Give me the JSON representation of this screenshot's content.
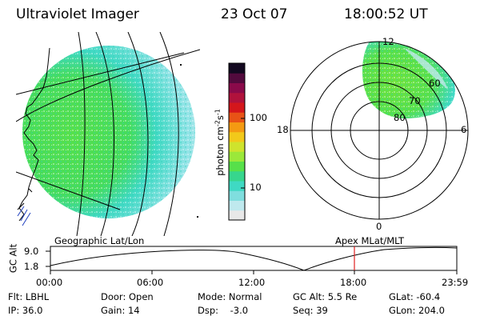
{
  "header": {
    "instrument": "Ultraviolet Imager",
    "date": "23 Oct 07",
    "time": "18:00:52 UT"
  },
  "colorbar": {
    "unit": "photon cm",
    "unit_exp1": "-2",
    "unit_mid": "s",
    "unit_exp2": "-1",
    "tick_100": "100",
    "tick_10": "10",
    "colors": [
      "#e8e8e8",
      "#bfe9ee",
      "#7fdede",
      "#3fd9c3",
      "#37d68d",
      "#57e04a",
      "#9be83a",
      "#cfe32d",
      "#f2c91a",
      "#f49a12",
      "#e85316",
      "#d4161b",
      "#b0123c",
      "#8a0a4a",
      "#520a3d",
      "#120820"
    ]
  },
  "left_panel": {
    "label": "Geographic Lat/Lon"
  },
  "right_panel": {
    "label": "Apex MLat/MLT",
    "mlt_12": "12",
    "mlt_18": "18",
    "mlt_6": "6",
    "mlt_0": "0",
    "lat_60": "60",
    "lat_70": "70",
    "lat_80": "80"
  },
  "altitude_plot": {
    "label": "GC Alt",
    "y_max": "9.0",
    "y_min": "1.8",
    "x_ticks": [
      "00:00",
      "06:00",
      "12:00",
      "18:00",
      "23:59"
    ],
    "current_time_marker": "18:00",
    "marker_color": "#e02020"
  },
  "status": {
    "flt": "Flt: LBHL",
    "ip": "IP: 36.0",
    "door": "Door: Open",
    "gain": "Gain: 14",
    "mode": "Mode: Normal",
    "dsp": "Dsp:    -3.0",
    "gc_alt": "GC Alt: 5.5 Re",
    "seq": "Seq: 39",
    "glat": "GLat: -60.4",
    "glon": "GLon: 204.0"
  }
}
